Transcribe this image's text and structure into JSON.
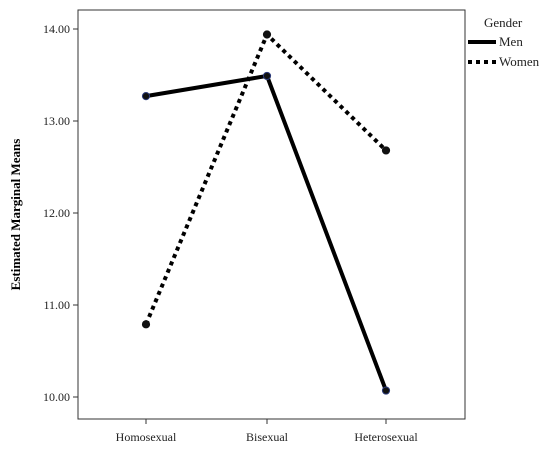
{
  "chart_data": {
    "type": "line",
    "title": "",
    "xlabel": "",
    "ylabel": "Estimated Marginal Means",
    "categories": [
      "Homosexual",
      "Bisexual",
      "Heterosexual"
    ],
    "ylim": [
      9.95,
      14.2
    ],
    "yticks": [
      "10.00",
      "11.00",
      "12.00",
      "13.00",
      "14.00"
    ],
    "grid": false,
    "legend": {
      "title": "Gender",
      "placement": "right",
      "entries": [
        "Men",
        "Women"
      ]
    },
    "series": [
      {
        "name": "Men",
        "values": [
          13.27,
          13.49,
          10.07
        ],
        "style": "solid",
        "color": "#000000"
      },
      {
        "name": "Women",
        "values": [
          10.79,
          13.94,
          12.68
        ],
        "style": "dotted",
        "color": "#000000"
      }
    ]
  }
}
